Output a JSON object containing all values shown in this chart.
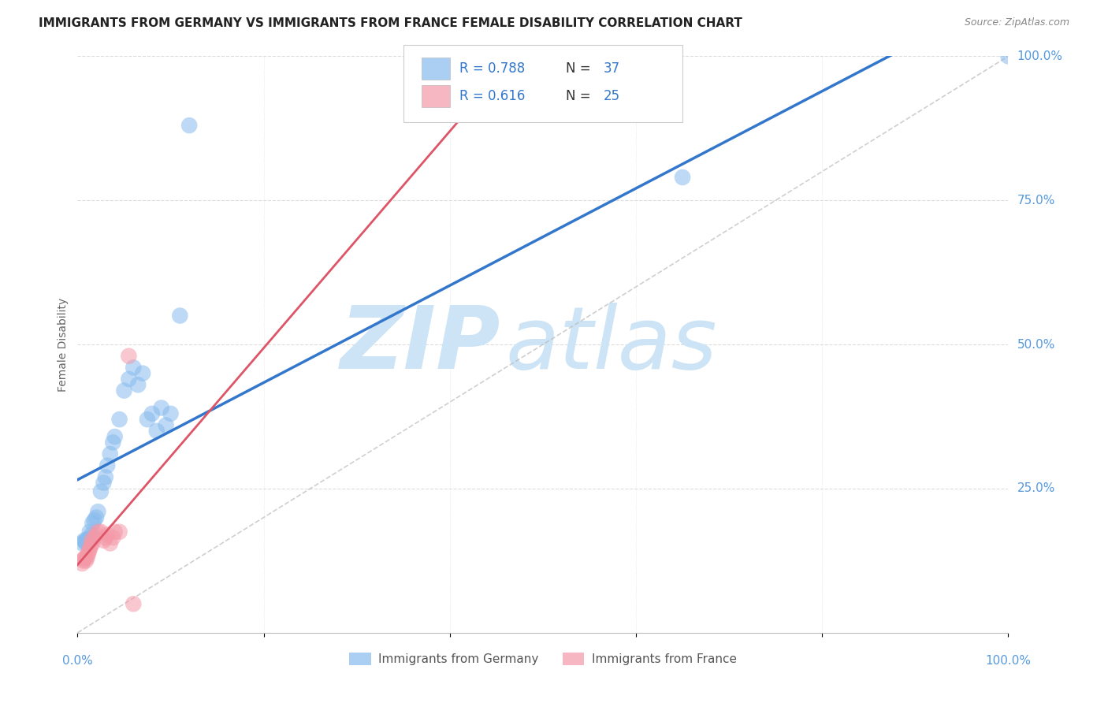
{
  "title": "IMMIGRANTS FROM GERMANY VS IMMIGRANTS FROM FRANCE FEMALE DISABILITY CORRELATION CHART",
  "source": "Source: ZipAtlas.com",
  "ylabel": "Female Disability",
  "xlim": [
    0,
    1
  ],
  "ylim": [
    0,
    1
  ],
  "background_color": "#ffffff",
  "watermark_zip": "ZIP",
  "watermark_atlas": "atlas",
  "watermark_color": "#cce4f5",
  "germany_color": "#88bbee",
  "france_color": "#f499a8",
  "germany_line_color": "#3377cc",
  "france_line_color": "#dd5566",
  "diagonal_color": "#bbbbbb",
  "grid_color": "#dddddd",
  "legend_box_color": "#ffffff",
  "legend_border_color": "#dddddd",
  "legend_R_germany": "R = 0.788",
  "legend_N_germany": "N = 37",
  "legend_R_france": "R = 0.616",
  "legend_N_france": "N = 25",
  "germany_scatter_x": [
    0.005,
    0.007,
    0.008,
    0.009,
    0.01,
    0.011,
    0.012,
    0.013,
    0.014,
    0.015,
    0.016,
    0.018,
    0.02,
    0.022,
    0.025,
    0.028,
    0.03,
    0.032,
    0.035,
    0.038,
    0.04,
    0.045,
    0.05,
    0.055,
    0.06,
    0.065,
    0.07,
    0.075,
    0.08,
    0.085,
    0.09,
    0.095,
    0.1,
    0.11,
    0.12,
    0.65,
    1.0
  ],
  "germany_scatter_y": [
    0.155,
    0.16,
    0.158,
    0.155,
    0.162,
    0.16,
    0.158,
    0.175,
    0.165,
    0.17,
    0.19,
    0.195,
    0.2,
    0.21,
    0.245,
    0.26,
    0.27,
    0.29,
    0.31,
    0.33,
    0.34,
    0.37,
    0.42,
    0.44,
    0.46,
    0.43,
    0.45,
    0.37,
    0.38,
    0.35,
    0.39,
    0.36,
    0.38,
    0.55,
    0.88,
    0.79,
    1.0
  ],
  "france_scatter_x": [
    0.005,
    0.006,
    0.007,
    0.008,
    0.009,
    0.01,
    0.011,
    0.012,
    0.013,
    0.014,
    0.015,
    0.016,
    0.018,
    0.02,
    0.022,
    0.025,
    0.028,
    0.03,
    0.032,
    0.035,
    0.038,
    0.04,
    0.045,
    0.055,
    0.06
  ],
  "france_scatter_y": [
    0.12,
    0.125,
    0.128,
    0.13,
    0.125,
    0.13,
    0.135,
    0.14,
    0.145,
    0.15,
    0.16,
    0.155,
    0.165,
    0.17,
    0.175,
    0.175,
    0.16,
    0.165,
    0.17,
    0.155,
    0.165,
    0.175,
    0.175,
    0.48,
    0.05
  ]
}
